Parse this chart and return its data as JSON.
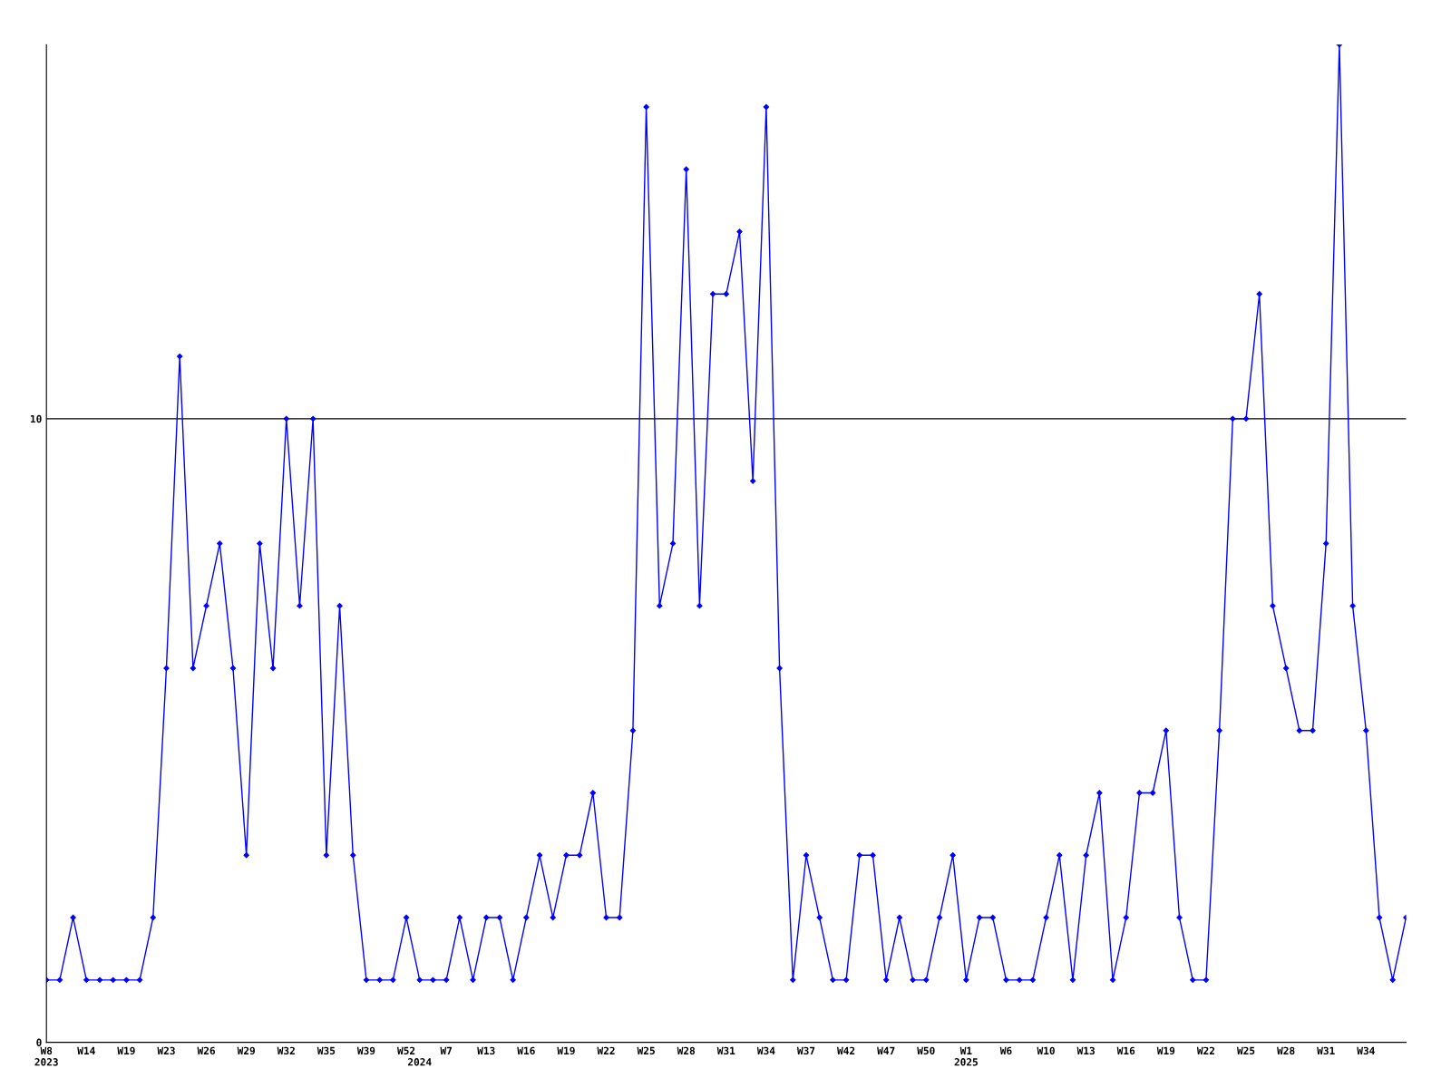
{
  "chart_data": {
    "type": "line",
    "categories": [
      "W8\n2023",
      null,
      null,
      "W14",
      null,
      null,
      "W19",
      null,
      null,
      "W23",
      null,
      null,
      "W26",
      null,
      null,
      "W29",
      null,
      null,
      "W32",
      null,
      null,
      "W35",
      null,
      null,
      "W39",
      null,
      null,
      "W52",
      "\n2024",
      null,
      "W7",
      null,
      null,
      "W13",
      null,
      null,
      "W16",
      null,
      null,
      "W19",
      null,
      null,
      "W22",
      null,
      null,
      "W25",
      null,
      null,
      "W28",
      null,
      null,
      "W31",
      null,
      null,
      "W34",
      null,
      null,
      "W37",
      null,
      null,
      "W42",
      null,
      null,
      "W47",
      null,
      null,
      "W50",
      null,
      null,
      "W1\n2025",
      null,
      null,
      "W6",
      null,
      null,
      "W10",
      null,
      null,
      "W13",
      null,
      null,
      "W16",
      null,
      null,
      "W19",
      null,
      null,
      "W22",
      null,
      null,
      "W25",
      null,
      null,
      "W28",
      null,
      null,
      "W31",
      null,
      null,
      "W34",
      null,
      null,
      null
    ],
    "series": [
      {
        "color": "#0000ff",
        "values": [
          1,
          1,
          2,
          1,
          1,
          1,
          1,
          1,
          2,
          6,
          11,
          6,
          7,
          8,
          6,
          3,
          8,
          6,
          10,
          7,
          10,
          3,
          7,
          3,
          1,
          1,
          1,
          2,
          1,
          1,
          1,
          2,
          1,
          2,
          2,
          1,
          2,
          3,
          2,
          3,
          3,
          4,
          2,
          2,
          5,
          15,
          7,
          8,
          14,
          7,
          12,
          12,
          13,
          9,
          15,
          6,
          1,
          3,
          2,
          1,
          1,
          3,
          3,
          1,
          2,
          1,
          1,
          2,
          3,
          1,
          2,
          2,
          1,
          1,
          1,
          2,
          3,
          1,
          3,
          4,
          1,
          2,
          4,
          4,
          5,
          2,
          1,
          1,
          5,
          10,
          10,
          12,
          7,
          6,
          5,
          5,
          8,
          16,
          7,
          5,
          2,
          1,
          2
        ]
      }
    ],
    "ylim": [
      0,
      16
    ],
    "yticks": [
      0,
      10
    ],
    "ref_lines": [
      {
        "axis": "y",
        "value": 10,
        "color": "#000000"
      }
    ],
    "marker": "diamond",
    "grid": false
  }
}
